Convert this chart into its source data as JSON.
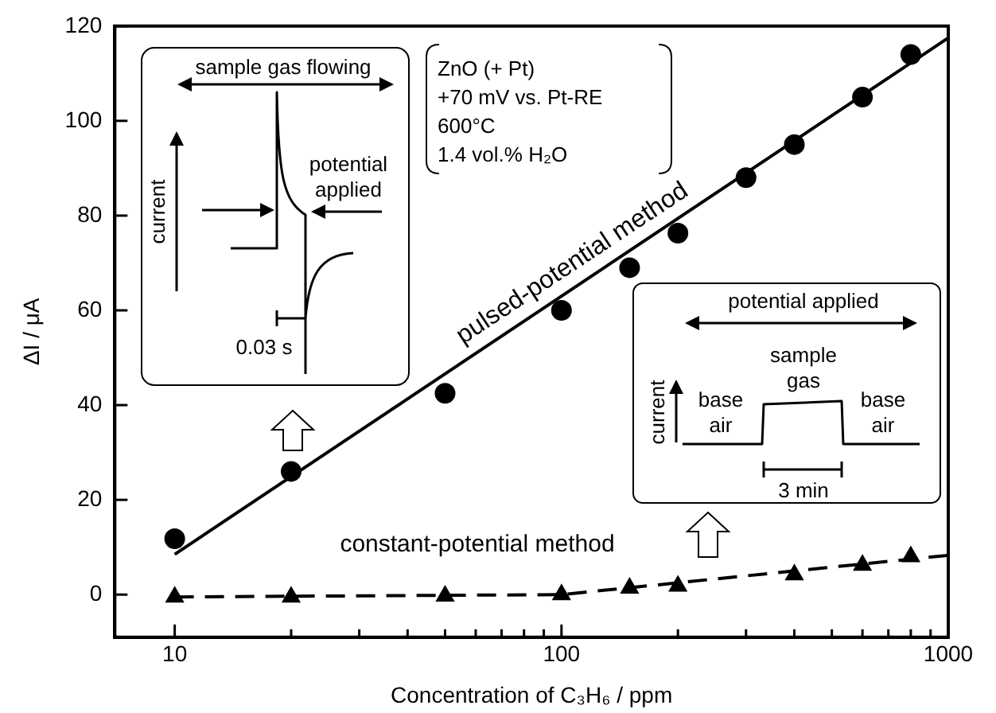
{
  "chart_data": {
    "type": "scatter",
    "xlabel": "Concentration of C₃H₆ / ppm",
    "ylabel": "ΔI / μA",
    "log": "x",
    "xlim": [
      7,
      1000
    ],
    "xticks": [
      10,
      {
        "value": 20,
        "label": null
      },
      {
        "value": 30,
        "label": null
      },
      {
        "value": 40,
        "label": null
      },
      {
        "value": 50,
        "label": null
      },
      {
        "value": 60,
        "label": null
      },
      {
        "value": 70,
        "label": null
      },
      {
        "value": 80,
        "label": null
      },
      {
        "value": 90,
        "label": null
      },
      100,
      {
        "value": 200,
        "label": null
      },
      {
        "value": 300,
        "label": null
      },
      {
        "value": 400,
        "label": null
      },
      {
        "value": 500,
        "label": null
      },
      {
        "value": 600,
        "label": null
      },
      {
        "value": 700,
        "label": null
      },
      {
        "value": 800,
        "label": null
      },
      {
        "value": 900,
        "label": null
      },
      1000
    ],
    "ylim": [
      -9,
      120
    ],
    "yticks": [
      0,
      20,
      40,
      60,
      80,
      100,
      120
    ],
    "grid": false,
    "legend": false,
    "series": [
      {
        "marker": "circle",
        "color": "#000000",
        "x": [
          10,
          20,
          50,
          100,
          150,
          200,
          300,
          400,
          600,
          800
        ],
        "values": [
          11.8,
          26,
          42.5,
          60,
          69,
          76.3,
          88,
          95,
          105,
          114
        ]
      },
      {
        "marker": "triangle",
        "color": "#000000",
        "x": [
          10,
          20,
          50,
          100,
          150,
          200,
          400,
          600,
          800
        ],
        "values": [
          -0.5,
          -0.5,
          -0.3,
          0,
          1.4,
          1.8,
          4.2,
          6.2,
          8
        ]
      },
      {
        "type": "line",
        "marker": "none",
        "line_style": "solid",
        "color": "#000000",
        "x": [
          10,
          1000
        ],
        "values": [
          8.5,
          117.5
        ]
      },
      {
        "type": "line",
        "marker": "none",
        "line_style": "dashed",
        "color": "#000000",
        "x": [
          10,
          100,
          1000
        ],
        "values": [
          -0.5,
          0,
          8.3
        ]
      }
    ],
    "annotations": [
      "pulsed-potential method",
      "constant-potential method",
      "ZnO (+ Pt)",
      "+70 mV vs. Pt-RE",
      "600°C",
      "1.4 vol.% H₂O",
      "sample gas flowing",
      "current",
      "potential applied",
      "0.03 s",
      "potential applied",
      "sample gas",
      "current",
      "base air",
      "base air",
      "3 min"
    ]
  }
}
